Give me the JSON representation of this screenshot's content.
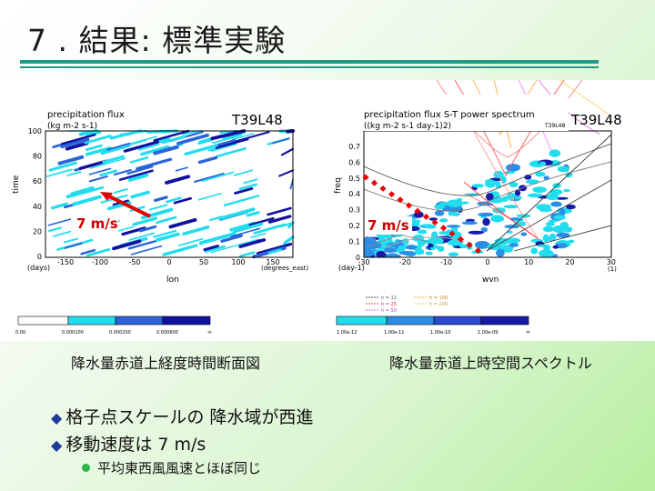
{
  "slide": {
    "title": "7 . 結果: 標準実験",
    "caption_left": "降水量赤道上経度時間断面図",
    "caption_right": "降水量赤道上時空間スペクトル",
    "bullet1": "格子点スケールの 降水域が西進",
    "bullet2": "移動速度は 7 m/s",
    "subbullet": "平均東西風風速とほぼ同じ"
  },
  "left_plot": {
    "title1": "precipitation flux",
    "title2": "(kg m-2 s-1)",
    "model": "T39L48",
    "ylabel": "time",
    "xlabel": "lon",
    "x_unit_left": "(days)",
    "x_unit_right": "(degrees_east)",
    "yticks": [
      "100",
      "80",
      "60",
      "40",
      "20",
      "0"
    ],
    "xticks": [
      "-150",
      "-100",
      "-50",
      "0",
      "50",
      "100",
      "150"
    ],
    "speed_label": "7 m/s",
    "colorbar": [
      "0.00",
      "0.000100",
      "0.000200",
      "0.000600",
      "∞"
    ]
  },
  "right_plot": {
    "title1": "precipitation flux S-T power spectrum",
    "title2": "((kg m-2 s-1 day-1)2)",
    "model_small": "T39L48",
    "model": "T39L48",
    "ylabel": "freq",
    "xlabel": "wvn",
    "x_unit_left": "(day-1)",
    "x_unit_right": "(1)",
    "yticks": [
      "0.7",
      "0.6",
      "0.5",
      "0.4",
      "0.3",
      "0.2",
      "0.1",
      "0"
    ],
    "xticks": [
      "-30",
      "-20",
      "-10",
      "0",
      "10",
      "20",
      "30"
    ],
    "speed_label": "7 m/s",
    "legend": [
      "h = 12",
      "h = 25",
      "h = 50",
      "h = 100",
      "h = 200"
    ],
    "colorbar": [
      "1.00e-12",
      "1.00e-11",
      "1.00e-10",
      "1.00e-09",
      "∞"
    ]
  },
  "colors": {
    "accent_rule": "#1e9a86",
    "arrow": "#e00000",
    "shade_light": "#22ddee",
    "shade_dark": "#1010a0"
  }
}
